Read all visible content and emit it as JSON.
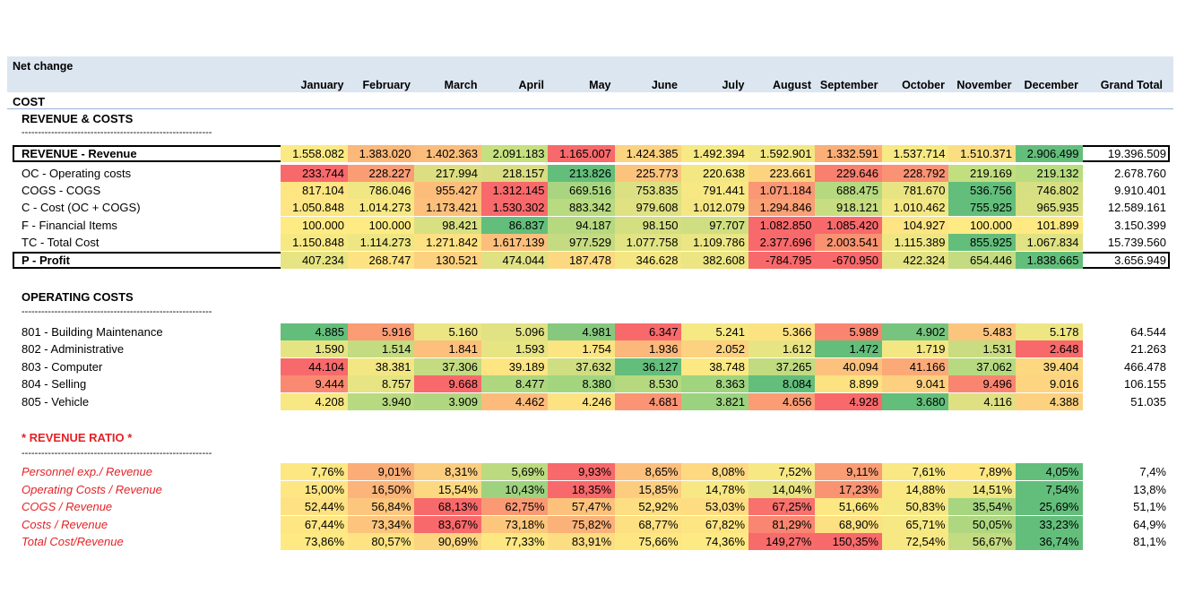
{
  "title": "Net change",
  "months": [
    "January",
    "February",
    "March",
    "April",
    "May",
    "June",
    "July",
    "August",
    "September",
    "October",
    "November",
    "December"
  ],
  "grand_total_label": "Grand Total",
  "cost_label": "COST",
  "dashes": "----------------------------------------------------------",
  "sections": {
    "revenue_costs": "REVENUE & COSTS",
    "operating_costs": "OPERATING COSTS",
    "revenue_ratio": "* REVENUE RATIO *"
  },
  "revenue_rows": [
    {
      "label": "REVENUE - Revenue",
      "bold": true,
      "boxed": true,
      "values": [
        "1.558.082",
        "1.383.020",
        "1.402.363",
        "2.091.183",
        "1.165.007",
        "1.424.385",
        "1.492.394",
        "1.592.901",
        "1.332.591",
        "1.537.714",
        "1.510.371",
        "2.906.499"
      ],
      "colors": [
        "#fbe983",
        "#fbb879",
        "#fbbd7b",
        "#c6e07f",
        "#f8696b",
        "#fcd380",
        "#f7e983",
        "#f3e783",
        "#fbaf77",
        "#f7e983",
        "#fcde82",
        "#63be7b"
      ],
      "total": "19.396.509"
    },
    {
      "label": "OC - Operating costs",
      "bold": false,
      "boxed": false,
      "values": [
        "233.744",
        "228.227",
        "217.994",
        "218.157",
        "213.826",
        "225.773",
        "220.638",
        "223.661",
        "229.646",
        "228.792",
        "219.169",
        "219.132"
      ],
      "colors": [
        "#f8696b",
        "#fa9d75",
        "#ddde81",
        "#d9dd81",
        "#63be7b",
        "#fcc37c",
        "#f3e783",
        "#fcd47f",
        "#f97f6f",
        "#fa9273",
        "#c2df80",
        "#b8dc7f"
      ],
      "total": "2.678.760"
    },
    {
      "label": "COGS - COGS",
      "bold": false,
      "boxed": false,
      "values": [
        "817.104",
        "786.046",
        "955.427",
        "1.312.145",
        "669.516",
        "753.835",
        "791.441",
        "1.071.184",
        "688.475",
        "781.670",
        "536.756",
        "746.802"
      ],
      "colors": [
        "#fde582",
        "#f0e683",
        "#fcbd7b",
        "#f8696b",
        "#aad580",
        "#dde082",
        "#f7e883",
        "#fa9774",
        "#b6d980",
        "#e9e483",
        "#63be7b",
        "#d6df82"
      ],
      "total": "9.910.401"
    },
    {
      "label": "C - Cost (OC + COGS)",
      "bold": false,
      "boxed": false,
      "values": [
        "1.050.848",
        "1.014.273",
        "1.173.421",
        "1.530.302",
        "883.342",
        "979.608",
        "1.012.079",
        "1.294.846",
        "918.121",
        "1.010.462",
        "755.925",
        "965.935"
      ],
      "colors": [
        "#fde683",
        "#f7e883",
        "#fcc07c",
        "#f8696b",
        "#b8da80",
        "#dfe182",
        "#f4e783",
        "#faa075",
        "#c8dd81",
        "#f3e783",
        "#63be7b",
        "#d9e082"
      ],
      "total": "12.589.161"
    },
    {
      "label": "F - Financial Items",
      "bold": false,
      "boxed": false,
      "values": [
        "100.000",
        "100.000",
        "98.421",
        "86.837",
        "94.187",
        "98.150",
        "97.707",
        "1.082.850",
        "1.085.420",
        "104.927",
        "100.000",
        "101.899"
      ],
      "colors": [
        "#ffeb84",
        "#ffeb84",
        "#d8e082",
        "#63be7b",
        "#b6d980",
        "#d4df82",
        "#cfde81",
        "#f8696b",
        "#f8696b",
        "#fee483",
        "#ffeb84",
        "#fee983"
      ],
      "total": "3.150.399"
    },
    {
      "label": "TC - Total Cost",
      "bold": false,
      "boxed": false,
      "values": [
        "1.150.848",
        "1.114.273",
        "1.271.842",
        "1.617.139",
        "977.529",
        "1.077.758",
        "1.109.786",
        "2.377.696",
        "2.003.541",
        "1.115.389",
        "855.925",
        "1.067.834"
      ],
      "colors": [
        "#f6e883",
        "#eee683",
        "#fee182",
        "#fcbf7b",
        "#c4db81",
        "#e2e383",
        "#ebe583",
        "#f8696b",
        "#f99270",
        "#eee683",
        "#63be7b",
        "#e0e283"
      ],
      "total": "15.739.560"
    },
    {
      "label": "P - Profit",
      "bold": true,
      "boxed": true,
      "values": [
        "407.234",
        "268.747",
        "130.521",
        "474.044",
        "187.478",
        "346.628",
        "382.608",
        "-784.795",
        "-670.950",
        "422.324",
        "654.446",
        "1.838.665"
      ],
      "colors": [
        "#e6e483",
        "#fde282",
        "#fcd17f",
        "#dfe182",
        "#fcd881",
        "#f4e783",
        "#ebe583",
        "#f8696b",
        "#f8696b",
        "#e3e383",
        "#c4db81",
        "#63be7b"
      ],
      "total": "3.656.949"
    }
  ],
  "operating_rows": [
    {
      "label": "801 -  Building Maintenance",
      "values": [
        "4.885",
        "5.916",
        "5.160",
        "5.096",
        "4.981",
        "6.347",
        "5.241",
        "5.366",
        "5.989",
        "4.902",
        "5.483",
        "5.178"
      ],
      "colors": [
        "#63be7b",
        "#fa9c74",
        "#ebe583",
        "#e1e283",
        "#86c97e",
        "#f8696b",
        "#f6e883",
        "#fde282",
        "#f98570",
        "#76c47d",
        "#fcc57d",
        "#eee683"
      ],
      "total": "64.544"
    },
    {
      "label": "802 -  Administrative",
      "values": [
        "1.590",
        "1.514",
        "1.841",
        "1.593",
        "1.754",
        "1.936",
        "2.052",
        "1.612",
        "1.472",
        "1.719",
        "1.531",
        "2.648"
      ],
      "colors": [
        "#e5e483",
        "#c3db81",
        "#fcc07c",
        "#e6e483",
        "#fbe482",
        "#fcb87a",
        "#fcd17f",
        "#e6e483",
        "#63be7b",
        "#f3e783",
        "#c9dc81",
        "#f8696b"
      ],
      "total": "21.263"
    },
    {
      "label": "803 -  Computer",
      "values": [
        "44.104",
        "38.381",
        "37.306",
        "39.189",
        "37.632",
        "36.127",
        "38.748",
        "37.265",
        "40.094",
        "41.166",
        "37.062",
        "39.404"
      ],
      "colors": [
        "#f8696b",
        "#f3e783",
        "#c4db81",
        "#fde582",
        "#d0de82",
        "#63be7b",
        "#fce983",
        "#c1db80",
        "#fcc17c",
        "#fbaa77",
        "#b7da80",
        "#fdd880"
      ],
      "total": "466.478"
    },
    {
      "label": "804 -  Selling",
      "values": [
        "9.444",
        "8.757",
        "9.668",
        "8.477",
        "8.380",
        "8.530",
        "8.363",
        "8.084",
        "8.899",
        "9.041",
        "9.496",
        "9.016"
      ],
      "colors": [
        "#f98a71",
        "#e6e483",
        "#f8696b",
        "#aed780",
        "#a3d57f",
        "#b6d980",
        "#a0d47f",
        "#63be7b",
        "#fde282",
        "#fdd07f",
        "#f98570",
        "#fdd480"
      ],
      "total": "106.155"
    },
    {
      "label": "805 -  Vehicle",
      "values": [
        "4.208",
        "3.940",
        "3.909",
        "4.462",
        "4.246",
        "4.681",
        "3.821",
        "4.656",
        "4.928",
        "3.680",
        "4.116",
        "4.388"
      ],
      "colors": [
        "#f7e883",
        "#b7d980",
        "#b0d780",
        "#fcbb7b",
        "#fde282",
        "#fa9474",
        "#9bd27f",
        "#fb9c75",
        "#f8696b",
        "#63be7b",
        "#dee082",
        "#fcd17f"
      ],
      "total": "51.035"
    }
  ],
  "ratio_rows": [
    {
      "label": "Personnel exp./ Revenue",
      "values": [
        "7,76%",
        "9,01%",
        "8,31%",
        "5,69%",
        "9,93%",
        "8,65%",
        "8,08%",
        "7,52%",
        "9,11%",
        "7,61%",
        "7,89%",
        "4,05%"
      ],
      "colors": [
        "#fde783",
        "#fbad77",
        "#fccd7f",
        "#bcdb80",
        "#f8696b",
        "#fcbf7c",
        "#fed982",
        "#f8e883",
        "#fa9d74",
        "#f9e883",
        "#fee783",
        "#63be7b"
      ],
      "total": "7,4%"
    },
    {
      "label": "Operating Costs / Revenue",
      "values": [
        "15,00%",
        "16,50%",
        "15,54%",
        "10,43%",
        "18,35%",
        "15,85%",
        "14,78%",
        "14,04%",
        "17,23%",
        "14,88%",
        "14,51%",
        "7,54%"
      ],
      "colors": [
        "#fee683",
        "#fbb479",
        "#fcd880",
        "#9fd27f",
        "#f8696b",
        "#fdcd7f",
        "#f8e883",
        "#e6e383",
        "#f99372",
        "#fae983",
        "#f0e683",
        "#63be7b"
      ],
      "total": "13,8%"
    },
    {
      "label": "COGS / Revenue",
      "values": [
        "52,44%",
        "56,84%",
        "68,13%",
        "62,75%",
        "57,47%",
        "52,92%",
        "53,03%",
        "67,25%",
        "51,66%",
        "50,83%",
        "35,54%",
        "25,69%"
      ],
      "colors": [
        "#fee182",
        "#fcc67d",
        "#f8696b",
        "#fa9974",
        "#fcc27c",
        "#fede82",
        "#fedd82",
        "#f8716c",
        "#fde783",
        "#f6e883",
        "#a7d580",
        "#63be7b"
      ],
      "total": "51,1%"
    },
    {
      "label": "Costs / Revenue",
      "values": [
        "67,44%",
        "73,34%",
        "83,67%",
        "73,18%",
        "75,82%",
        "68,77%",
        "67,82%",
        "81,29%",
        "68,90%",
        "65,71%",
        "50,05%",
        "33,23%"
      ],
      "colors": [
        "#fee783",
        "#fcc47d",
        "#f8696b",
        "#fcc67d",
        "#fbb279",
        "#fde082",
        "#fee583",
        "#f98670",
        "#fde082",
        "#f6e883",
        "#aed780",
        "#63be7b"
      ],
      "total": "64,9%"
    },
    {
      "label": "Total Cost/Revenue",
      "values": [
        "73,86%",
        "80,57%",
        "90,69%",
        "77,33%",
        "83,91%",
        "75,66%",
        "74,36%",
        "149,27%",
        "150,35%",
        "72,54%",
        "56,67%",
        "36,74%"
      ],
      "colors": [
        "#fee983",
        "#fde382",
        "#fcd580",
        "#fee783",
        "#fddd82",
        "#fee783",
        "#feea83",
        "#f86b6b",
        "#f8696b",
        "#f8e883",
        "#c3db81",
        "#63be7b"
      ],
      "total": "81,1%"
    }
  ]
}
